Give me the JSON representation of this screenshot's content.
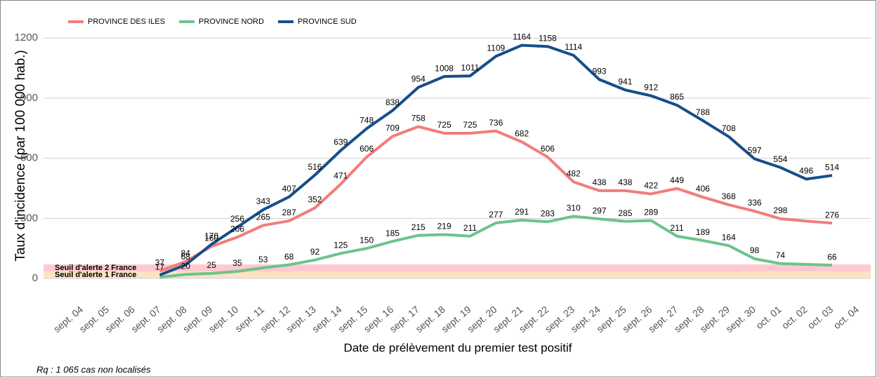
{
  "chart_data": {
    "type": "line",
    "y_label": "Taux d'incidence (par 100 000 hab.)",
    "x_label": "Date de prélèvement du premier test positif",
    "note": "Rq : 1 065 cas non localisés",
    "categories": [
      "sept. 04",
      "sept. 05",
      "sept. 06",
      "sept. 07",
      "sept. 08",
      "sept. 09",
      "sept. 10",
      "sept. 11",
      "sept. 12",
      "sept. 13",
      "sept. 14",
      "sept. 15",
      "sept. 16",
      "sept. 17",
      "sept. 18",
      "sept. 19",
      "sept. 20",
      "sept. 21",
      "sept. 22",
      "sept. 23",
      "sept. 24",
      "sept. 25",
      "sept. 26",
      "sept. 27",
      "sept. 28",
      "sept. 29",
      "sept. 30",
      "oct. 01",
      "oct. 02",
      "oct. 03",
      "oct. 04"
    ],
    "ylim": [
      -28,
      1250
    ],
    "yticks": [
      0,
      300,
      600,
      900,
      1200
    ],
    "grid": true,
    "legend_position": "top-left",
    "bands": [
      {
        "name": "Seuil d'alerte 1 France",
        "from": 0,
        "to": 35,
        "color": "#fbe3c4"
      },
      {
        "name": "Seuil d'alerte 2 France",
        "from": 35,
        "to": 70,
        "color": "#ffc9d0"
      }
    ],
    "series": [
      {
        "name": "PROVINCE DES ILES",
        "color": "#f27c7c",
        "values": [
          null,
          null,
          null,
          37,
          84,
          160,
          206,
          265,
          287,
          352,
          471,
          606,
          709,
          758,
          725,
          725,
          736,
          682,
          606,
          482,
          438,
          438,
          422,
          449,
          406,
          368,
          336,
          298,
          286,
          276,
          null
        ],
        "value_labels": [
          null,
          null,
          null,
          "37",
          "84",
          "160",
          "206",
          "265",
          "287",
          "352",
          "471",
          "606",
          "709",
          "758",
          "725",
          "725",
          "736",
          "682",
          "606",
          "482",
          "438",
          "438",
          "422",
          "449",
          "406",
          "368",
          "336",
          "298",
          null,
          "276",
          null
        ]
      },
      {
        "name": "PROVINCE NORD",
        "color": "#6cc48a",
        "values": [
          null,
          null,
          null,
          6,
          20,
          25,
          35,
          53,
          68,
          92,
          125,
          150,
          185,
          215,
          219,
          211,
          277,
          291,
          283,
          310,
          297,
          285,
          289,
          211,
          189,
          164,
          98,
          74,
          70,
          66,
          null
        ],
        "value_labels": [
          null,
          null,
          null,
          null,
          "20",
          "25",
          "35",
          "53",
          "68",
          "92",
          "125",
          "150",
          "185",
          "215",
          "219",
          "211",
          "277",
          "291",
          "283",
          "310",
          "297",
          "285",
          "289",
          "211",
          "189",
          "164",
          "98",
          "74",
          null,
          "66",
          null
        ]
      },
      {
        "name": "PROVINCE SUD",
        "color": "#154f8a",
        "values": [
          null,
          null,
          null,
          17,
          68,
          170,
          256,
          343,
          407,
          516,
          639,
          748,
          838,
          954,
          1008,
          1011,
          1109,
          1164,
          1158,
          1114,
          993,
          941,
          912,
          865,
          788,
          708,
          597,
          554,
          496,
          514,
          null
        ],
        "value_labels": [
          null,
          null,
          null,
          "17",
          "68",
          "170",
          "256",
          "343",
          "407",
          "516",
          "639",
          "748",
          "838",
          "954",
          "1008",
          "1011",
          "1109",
          "1164",
          "1158",
          "1114",
          "993",
          "941",
          "912",
          "865",
          "788",
          "708",
          "597",
          "554",
          "496",
          "514",
          null
        ]
      }
    ]
  }
}
